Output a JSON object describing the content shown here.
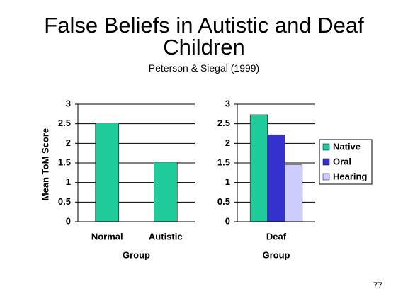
{
  "title": "False Beliefs in Autistic and Deaf Children",
  "subtitle": "Peterson & Siegal (1999)",
  "page_number": "77",
  "chart_data": [
    {
      "type": "bar",
      "categories": [
        "Normal",
        "Autistic"
      ],
      "values": [
        2.52,
        1.52
      ],
      "color": "#1fcc99",
      "ylabel": "Mean ToM Score",
      "xlabel": "Group",
      "ylim": [
        0,
        3
      ],
      "yticks": [
        0,
        0.5,
        1,
        1.5,
        2,
        2.5,
        3
      ],
      "grid": true
    },
    {
      "type": "grouped_bar",
      "categories": [
        "Deaf"
      ],
      "xlabel": "Group",
      "series": [
        {
          "name": "Native",
          "color": "#1fcc99",
          "values": [
            2.73
          ]
        },
        {
          "name": "Oral",
          "color": "#3333cc",
          "values": [
            2.22
          ]
        },
        {
          "name": "Hearing",
          "color": "#ccccff",
          "values": [
            1.45
          ]
        }
      ],
      "ylim": [
        0,
        3
      ],
      "yticks": [
        0,
        0.5,
        1,
        1.5,
        2,
        2.5,
        3
      ],
      "grid": true,
      "legend": "right"
    }
  ]
}
